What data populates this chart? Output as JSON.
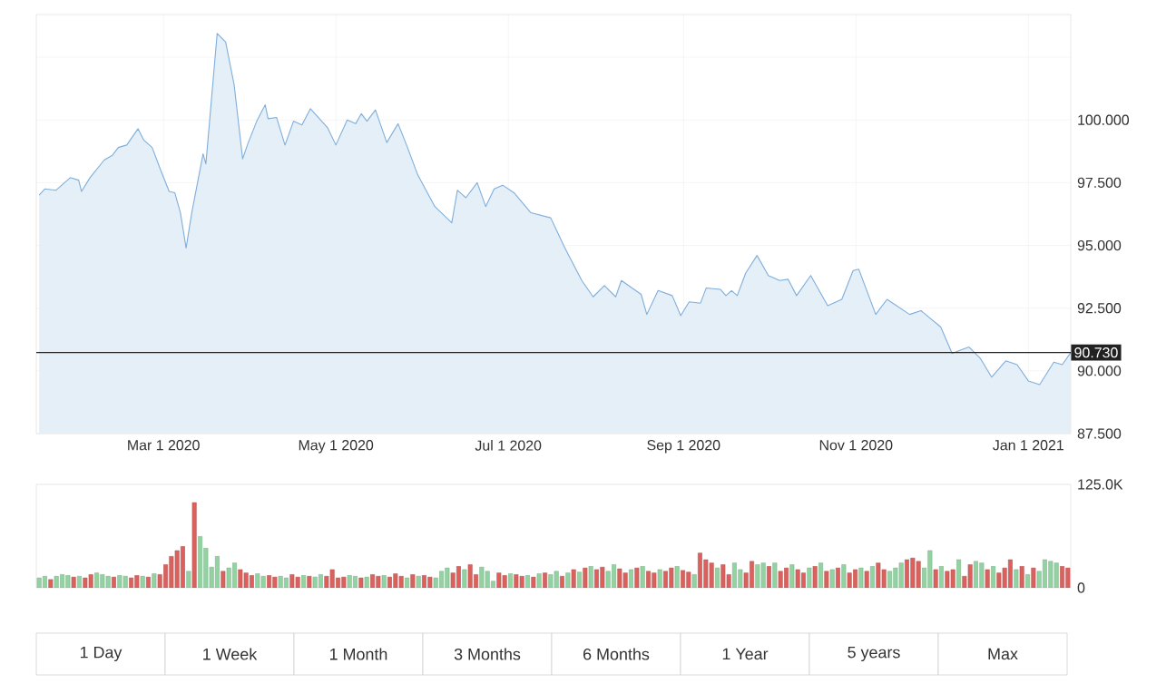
{
  "chart_data": [
    {
      "type": "area",
      "x": [
        "2020-01-17",
        "2020-01-19",
        "2020-01-23",
        "2020-01-28",
        "2020-01-31",
        "2020-02-01",
        "2020-02-04",
        "2020-02-09",
        "2020-02-12",
        "2020-02-14",
        "2020-02-17",
        "2020-02-21",
        "2020-02-23",
        "2020-02-26",
        "2020-02-29",
        "2020-03-03",
        "2020-03-05",
        "2020-03-07",
        "2020-03-09",
        "2020-03-11",
        "2020-03-15",
        "2020-03-16",
        "2020-03-20",
        "2020-03-23",
        "2020-03-26",
        "2020-03-29",
        "2020-03-31",
        "2020-04-03",
        "2020-04-06",
        "2020-04-07",
        "2020-04-10",
        "2020-04-13",
        "2020-04-16",
        "2020-04-19",
        "2020-04-22",
        "2020-04-28",
        "2020-05-01",
        "2020-05-05",
        "2020-05-08",
        "2020-05-10",
        "2020-05-12",
        "2020-05-15",
        "2020-05-19",
        "2020-05-23",
        "2020-05-26",
        "2020-05-30",
        "2020-06-05",
        "2020-06-11",
        "2020-06-13",
        "2020-06-16",
        "2020-06-20",
        "2020-06-23",
        "2020-06-26",
        "2020-06-29",
        "2020-07-03",
        "2020-07-09",
        "2020-07-16",
        "2020-07-21",
        "2020-07-27",
        "2020-07-31",
        "2020-08-04",
        "2020-08-08",
        "2020-08-10",
        "2020-08-17",
        "2020-08-19",
        "2020-08-23",
        "2020-08-28",
        "2020-08-31",
        "2020-09-03",
        "2020-09-07",
        "2020-09-09",
        "2020-09-14",
        "2020-09-16",
        "2020-09-18",
        "2020-09-20",
        "2020-09-23",
        "2020-09-27",
        "2020-10-01",
        "2020-10-05",
        "2020-10-08",
        "2020-10-11",
        "2020-10-16",
        "2020-10-22",
        "2020-10-27",
        "2020-10-31",
        "2020-11-02",
        "2020-11-08",
        "2020-11-12",
        "2020-11-20",
        "2020-11-24",
        "2020-12-01",
        "2020-12-05",
        "2020-12-11",
        "2020-12-15",
        "2020-12-19",
        "2020-12-24",
        "2020-12-28",
        "2021-01-01",
        "2021-01-05",
        "2021-01-10",
        "2021-01-13",
        "2021-01-16"
      ],
      "series": [
        {
          "color": "#7eaedb",
          "values": [
            97.0,
            97.25,
            97.2,
            97.7,
            97.6,
            97.15,
            97.7,
            98.4,
            98.6,
            98.9,
            99.0,
            99.65,
            99.2,
            98.9,
            98.0,
            97.15,
            97.1,
            96.3,
            94.9,
            96.3,
            98.65,
            98.25,
            103.45,
            103.1,
            101.4,
            98.45,
            99.1,
            99.95,
            100.6,
            100.05,
            100.1,
            99.0,
            99.95,
            99.8,
            100.45,
            99.7,
            99.0,
            100.0,
            99.85,
            100.25,
            99.95,
            100.4,
            99.1,
            99.85,
            99.0,
            97.8,
            96.55,
            95.9,
            97.2,
            96.9,
            97.5,
            96.55,
            97.25,
            97.4,
            97.1,
            96.3,
            96.1,
            94.9,
            93.6,
            92.95,
            93.4,
            92.95,
            93.6,
            93.05,
            92.25,
            93.2,
            93.0,
            92.2,
            92.75,
            92.7,
            93.3,
            93.25,
            93.0,
            93.2,
            93.0,
            93.9,
            94.6,
            93.8,
            93.6,
            93.65,
            93.0,
            93.8,
            92.6,
            92.85,
            94.0,
            94.05,
            92.25,
            92.85,
            92.25,
            92.4,
            91.75,
            90.7,
            90.95,
            90.5,
            89.75,
            90.4,
            90.25,
            89.6,
            89.45,
            90.35,
            90.25,
            90.73
          ]
        }
      ],
      "xlim": [
        "2020-01-16",
        "2021-01-16"
      ],
      "xticks": [
        {
          "value": "2020-03-01",
          "label": "Mar 1 2020"
        },
        {
          "value": "2020-05-01",
          "label": "May 1 2020"
        },
        {
          "value": "2020-07-01",
          "label": "Jul 1 2020"
        },
        {
          "value": "2020-09-01",
          "label": "Sep 1 2020"
        },
        {
          "value": "2020-11-01",
          "label": "Nov 1 2020"
        },
        {
          "value": "2021-01-01",
          "label": "Jan 1 2021"
        }
      ],
      "ylim": [
        87.5,
        104.2
      ],
      "yticks": [
        {
          "value": 87.5,
          "label": "87.500"
        },
        {
          "value": 90,
          "label": "90.000"
        },
        {
          "value": 92.5,
          "label": "92.500"
        },
        {
          "value": 95,
          "label": "95.000"
        },
        {
          "value": 97.5,
          "label": "97.500"
        },
        {
          "value": 100,
          "label": "100.000"
        },
        {
          "value": 102.5,
          "label": null
        }
      ],
      "grid": true,
      "ref_lines": [
        {
          "axis": "y",
          "value": 90.73,
          "label": "90.730",
          "color": "#222222"
        }
      ]
    },
    {
      "type": "bar",
      "categories": [
        null,
        null,
        null,
        null,
        null,
        null,
        null,
        null,
        null,
        null,
        null,
        null,
        null,
        null,
        null,
        null,
        null,
        null,
        null,
        null,
        null,
        null,
        null,
        null,
        null,
        null,
        null,
        null,
        null,
        null,
        null,
        null,
        null,
        null,
        null,
        null,
        null,
        null,
        null,
        null,
        null,
        null,
        null,
        null,
        null,
        null,
        null,
        null,
        null,
        null,
        null,
        null,
        null,
        null,
        null,
        null,
        null,
        null,
        null,
        null,
        null,
        null,
        null,
        null,
        null,
        null,
        null,
        null,
        null,
        null,
        null,
        null,
        null,
        null,
        null,
        null,
        null,
        null,
        null,
        null,
        null,
        null,
        null,
        null,
        null,
        null,
        null,
        null,
        null,
        null,
        null,
        null,
        null,
        null,
        null,
        null,
        null,
        null,
        null,
        null,
        null,
        null,
        null,
        null,
        null,
        null,
        null,
        null,
        null,
        null,
        null,
        null,
        null,
        null,
        null,
        null,
        null,
        null,
        null,
        null,
        null,
        null,
        null,
        null,
        null,
        null,
        null,
        null,
        null,
        null,
        null,
        null,
        null,
        null,
        null,
        null,
        null,
        null,
        null,
        null,
        null,
        null,
        null,
        null,
        null,
        null,
        null,
        null,
        null,
        null,
        null,
        null,
        null,
        null,
        null,
        null,
        null,
        null,
        null,
        null,
        null,
        null,
        null,
        null,
        null,
        null,
        null,
        null,
        null,
        null,
        null,
        null,
        null,
        null,
        null,
        null,
        null,
        null,
        null,
        null
      ],
      "values": [
        12000,
        14000,
        10000,
        14000,
        16000,
        15000,
        13000,
        14000,
        12000,
        16000,
        18000,
        16000,
        14000,
        13000,
        15000,
        14000,
        12000,
        15000,
        14000,
        13000,
        17000,
        16000,
        28000,
        38000,
        45000,
        50000,
        20000,
        103000,
        62000,
        48000,
        25000,
        38000,
        20000,
        24000,
        30000,
        22000,
        18000,
        15000,
        17000,
        14000,
        15000,
        13000,
        14000,
        12000,
        16000,
        13000,
        15000,
        14000,
        13000,
        16000,
        14000,
        22000,
        12000,
        13000,
        15000,
        14000,
        12000,
        13000,
        16000,
        14000,
        15000,
        13000,
        17000,
        14000,
        12000,
        16000,
        14000,
        15000,
        13000,
        12000,
        20000,
        24000,
        18000,
        26000,
        22000,
        28000,
        16000,
        25000,
        20000,
        8000,
        18000,
        15000,
        17000,
        16000,
        14000,
        15000,
        13000,
        17000,
        18000,
        16000,
        20000,
        14000,
        18000,
        22000,
        19000,
        24000,
        26000,
        22000,
        25000,
        20000,
        28000,
        23000,
        18000,
        22000,
        24000,
        26000,
        20000,
        18000,
        22000,
        20000,
        24000,
        26000,
        21000,
        19000,
        16000,
        42000,
        34000,
        30000,
        24000,
        28000,
        16000,
        30000,
        22000,
        18000,
        32000,
        28000,
        30000,
        26000,
        30000,
        20000,
        24000,
        28000,
        22000,
        18000,
        24000,
        26000,
        30000,
        20000,
        22000,
        24000,
        28000,
        18000,
        22000,
        24000,
        20000,
        26000,
        30000,
        22000,
        20000,
        24000,
        30000,
        34000,
        36000,
        32000,
        24000,
        45000,
        22000,
        26000,
        20000,
        22000,
        34000,
        14000,
        28000,
        32000,
        30000,
        22000,
        26000,
        18000,
        24000,
        34000,
        22000,
        26000,
        16000,
        24000,
        20000,
        34000,
        32000,
        30000,
        26000,
        24000
      ],
      "colors": [
        "#93d3a2",
        "#93d3a2",
        "#d9625e",
        "#93d3a2",
        "#93d3a2",
        "#93d3a2",
        "#d9625e",
        "#93d3a2",
        "#d9625e",
        "#d9625e",
        "#93d3a2",
        "#93d3a2",
        "#93d3a2",
        "#d9625e",
        "#93d3a2",
        "#93d3a2",
        "#d9625e",
        "#d9625e",
        "#93d3a2",
        "#d9625e",
        "#93d3a2",
        "#d9625e",
        "#d9625e",
        "#d9625e",
        "#d9625e",
        "#d9625e",
        "#93d3a2",
        "#d9625e",
        "#93d3a2",
        "#93d3a2",
        "#93d3a2",
        "#93d3a2",
        "#d9625e",
        "#93d3a2",
        "#93d3a2",
        "#d9625e",
        "#d9625e",
        "#d9625e",
        "#93d3a2",
        "#93d3a2",
        "#d9625e",
        "#d9625e",
        "#93d3a2",
        "#93d3a2",
        "#d9625e",
        "#d9625e",
        "#93d3a2",
        "#d9625e",
        "#93d3a2",
        "#93d3a2",
        "#d9625e",
        "#d9625e",
        "#d9625e",
        "#d9625e",
        "#93d3a2",
        "#93d3a2",
        "#d9625e",
        "#93d3a2",
        "#d9625e",
        "#d9625e",
        "#93d3a2",
        "#d9625e",
        "#d9625e",
        "#d9625e",
        "#93d3a2",
        "#d9625e",
        "#93d3a2",
        "#d9625e",
        "#d9625e",
        "#93d3a2",
        "#93d3a2",
        "#93d3a2",
        "#d9625e",
        "#d9625e",
        "#93d3a2",
        "#d9625e",
        "#d9625e",
        "#93d3a2",
        "#93d3a2",
        "#93d3a2",
        "#d9625e",
        "#d9625e",
        "#93d3a2",
        "#d9625e",
        "#d9625e",
        "#93d3a2",
        "#d9625e",
        "#93d3a2",
        "#d9625e",
        "#93d3a2",
        "#93d3a2",
        "#d9625e",
        "#93d3a2",
        "#d9625e",
        "#93d3a2",
        "#d9625e",
        "#93d3a2",
        "#d9625e",
        "#d9625e",
        "#93d3a2",
        "#93d3a2",
        "#d9625e",
        "#d9625e",
        "#93d3a2",
        "#d9625e",
        "#93d3a2",
        "#d9625e",
        "#d9625e",
        "#93d3a2",
        "#d9625e",
        "#d9625e",
        "#93d3a2",
        "#d9625e",
        "#d9625e",
        "#93d3a2",
        "#d9625e",
        "#d9625e",
        "#d9625e",
        "#93d3a2",
        "#d9625e",
        "#d9625e",
        "#93d3a2",
        "#93d3a2",
        "#d9625e",
        "#d9625e",
        "#93d3a2",
        "#93d3a2",
        "#d9625e",
        "#93d3a2",
        "#d9625e",
        "#d9625e",
        "#93d3a2",
        "#d9625e",
        "#d9625e",
        "#93d3a2",
        "#d9625e",
        "#93d3a2",
        "#d9625e",
        "#93d3a2",
        "#d9625e",
        "#93d3a2",
        "#d9625e",
        "#d9625e",
        "#93d3a2",
        "#d9625e",
        "#93d3a2",
        "#d9625e",
        "#d9625e",
        "#93d3a2",
        "#93d3a2",
        "#93d3a2",
        "#d9625e",
        "#d9625e",
        "#d9625e",
        "#93d3a2",
        "#93d3a2",
        "#d9625e",
        "#93d3a2",
        "#d9625e",
        "#d9625e",
        "#93d3a2",
        "#d9625e",
        "#d9625e",
        "#93d3a2",
        "#93d3a2",
        "#d9625e",
        "#93d3a2",
        "#d9625e",
        "#d9625e",
        "#d9625e",
        "#93d3a2",
        "#d9625e",
        "#93d3a2",
        "#d9625e",
        "#93d3a2",
        "#93d3a2",
        "#93d3a2",
        "#93d3a2",
        "#d9625e",
        "#d9625e"
      ],
      "ylim": [
        0,
        125000
      ],
      "yticks": [
        {
          "value": 0,
          "label": "0"
        },
        {
          "value": 125000,
          "label": "125.0K"
        }
      ],
      "tick_labels": "y",
      "annotations": [
        "1 Day",
        "1 Week",
        "1 Month",
        "3 Months",
        "6 Months",
        "1 Year",
        "5 years",
        "Max"
      ]
    }
  ]
}
